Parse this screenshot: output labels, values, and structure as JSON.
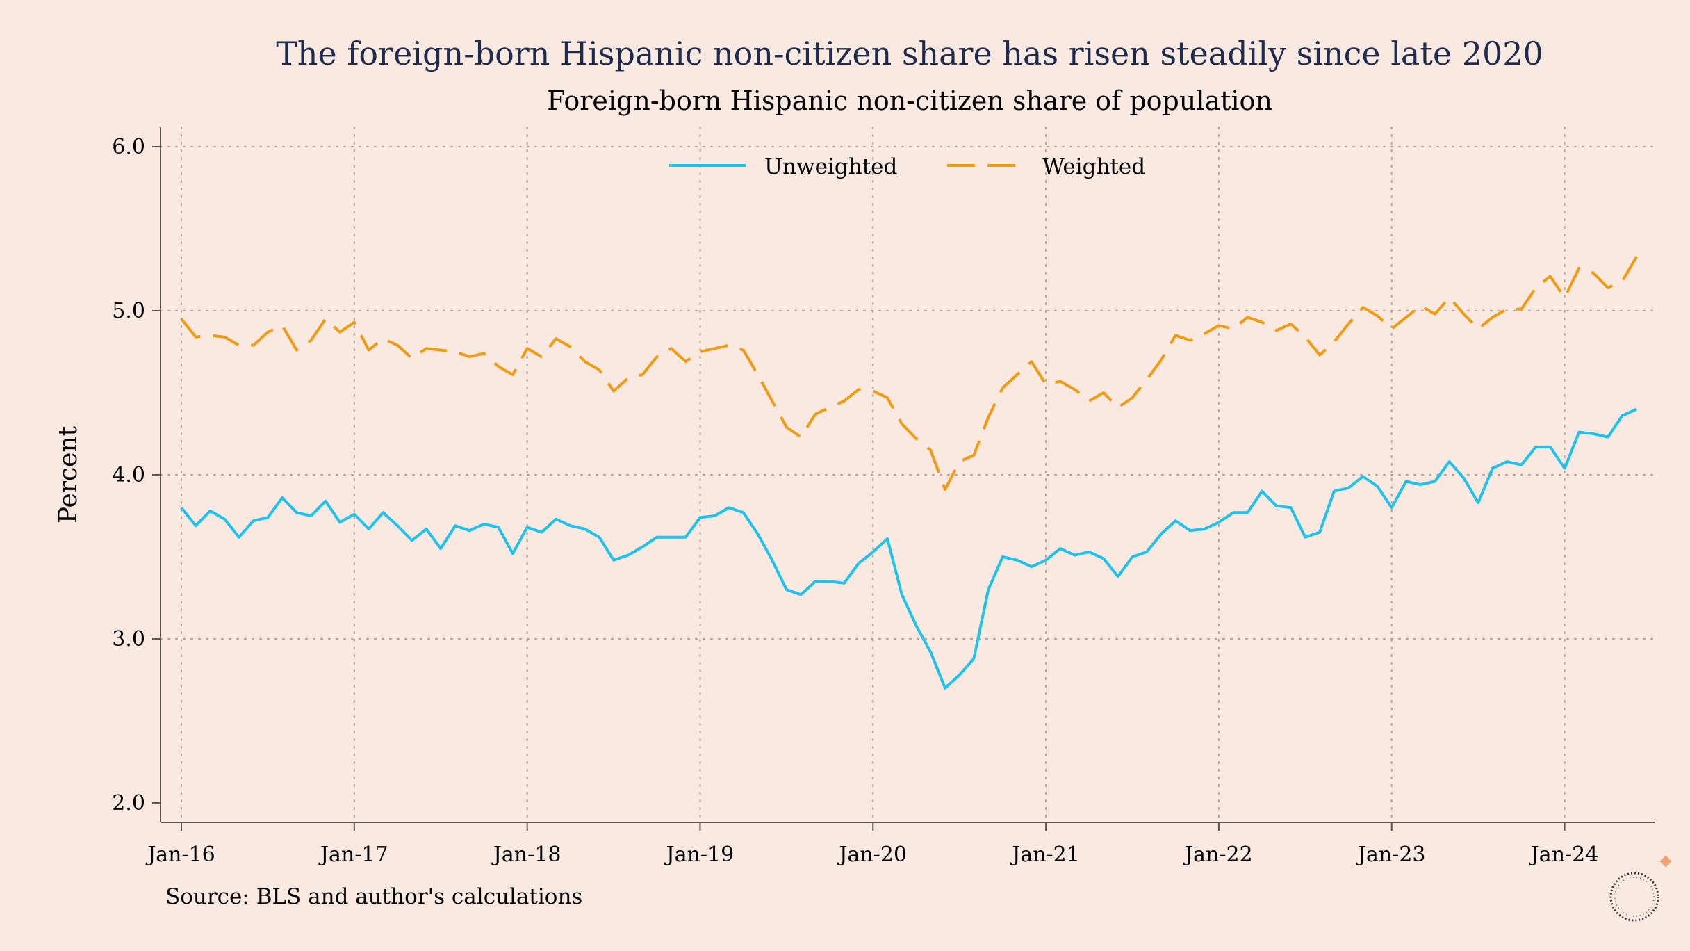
{
  "title": "The foreign-born Hispanic non-citizen share has risen steadily since late 2020",
  "subtitle": "Foreign-born Hispanic non-citizen share of population",
  "source": "Source: BLS and author's calculations",
  "colors": {
    "background": "#fae9e0",
    "unweighted": "#1ec2ee",
    "weighted": "#f39a13",
    "title": "#1d2b4f",
    "grid": "#b9a49a"
  },
  "icons": [
    "diamond-icon",
    "circular-logo-icon"
  ],
  "chart_data": {
    "type": "line",
    "title": "The foreign-born Hispanic non-citizen share has risen steadily since late 2020",
    "subtitle": "Foreign-born Hispanic non-citizen share of population",
    "xlabel": "",
    "ylabel": "Percent",
    "ylim": [
      2.0,
      6.0
    ],
    "yticks": [
      "2.0",
      "3.0",
      "4.0",
      "5.0",
      "6.0"
    ],
    "xticks": [
      "Jan-16",
      "Jan-17",
      "Jan-18",
      "Jan-19",
      "Jan-20",
      "Jan-21",
      "Jan-22",
      "Jan-23",
      "Jan-24"
    ],
    "x_start": "Jan-16",
    "x_frequency": "monthly",
    "grid": true,
    "legend_position": "top",
    "series": [
      {
        "name": "Unweighted",
        "style": "solid",
        "color": "#1ec2ee",
        "values": [
          3.8,
          3.69,
          3.78,
          3.73,
          3.62,
          3.72,
          3.74,
          3.86,
          3.77,
          3.75,
          3.84,
          3.71,
          3.76,
          3.67,
          3.77,
          3.69,
          3.6,
          3.67,
          3.55,
          3.69,
          3.66,
          3.7,
          3.68,
          3.52,
          3.68,
          3.65,
          3.73,
          3.69,
          3.67,
          3.62,
          3.48,
          3.51,
          3.56,
          3.62,
          3.62,
          3.62,
          3.74,
          3.75,
          3.8,
          3.77,
          3.64,
          3.48,
          3.3,
          3.27,
          3.35,
          3.35,
          3.34,
          3.46,
          3.53,
          3.61,
          3.27,
          3.08,
          2.92,
          2.7,
          2.78,
          2.88,
          3.3,
          3.5,
          3.48,
          3.44,
          3.48,
          3.55,
          3.51,
          3.53,
          3.49,
          3.38,
          3.5,
          3.53,
          3.64,
          3.72,
          3.66,
          3.67,
          3.71,
          3.77,
          3.77,
          3.9,
          3.81,
          3.8,
          3.62,
          3.65,
          3.9,
          3.92,
          3.99,
          3.93,
          3.8,
          3.96,
          3.94,
          3.96,
          4.08,
          3.98,
          3.83,
          4.04,
          4.08,
          4.06,
          4.17,
          4.17,
          4.04,
          4.26,
          4.25,
          4.23,
          4.36,
          4.4
        ]
      },
      {
        "name": "Weighted",
        "style": "dashed",
        "color": "#f39a13",
        "values": [
          4.95,
          4.84,
          4.85,
          4.84,
          4.79,
          4.79,
          4.87,
          4.91,
          4.76,
          4.82,
          4.95,
          4.87,
          4.93,
          4.76,
          4.83,
          4.79,
          4.71,
          4.77,
          4.76,
          4.75,
          4.72,
          4.74,
          4.66,
          4.61,
          4.77,
          4.72,
          4.83,
          4.78,
          4.69,
          4.64,
          4.51,
          4.59,
          4.61,
          4.72,
          4.77,
          4.69,
          4.75,
          4.77,
          4.79,
          4.76,
          4.61,
          4.45,
          4.29,
          4.23,
          4.37,
          4.41,
          4.45,
          4.52,
          4.51,
          4.47,
          4.31,
          4.22,
          4.15,
          3.91,
          4.08,
          4.12,
          4.35,
          4.53,
          4.61,
          4.69,
          4.55,
          4.57,
          4.52,
          4.45,
          4.5,
          4.41,
          4.47,
          4.58,
          4.7,
          4.85,
          4.82,
          4.86,
          4.91,
          4.89,
          4.96,
          4.93,
          4.88,
          4.92,
          4.84,
          4.73,
          4.81,
          4.92,
          5.02,
          4.97,
          4.89,
          4.96,
          5.03,
          4.98,
          5.08,
          4.98,
          4.89,
          4.96,
          5.01,
          5.01,
          5.14,
          5.21,
          5.08,
          5.26,
          5.23,
          5.14,
          5.18,
          5.33
        ]
      }
    ]
  }
}
